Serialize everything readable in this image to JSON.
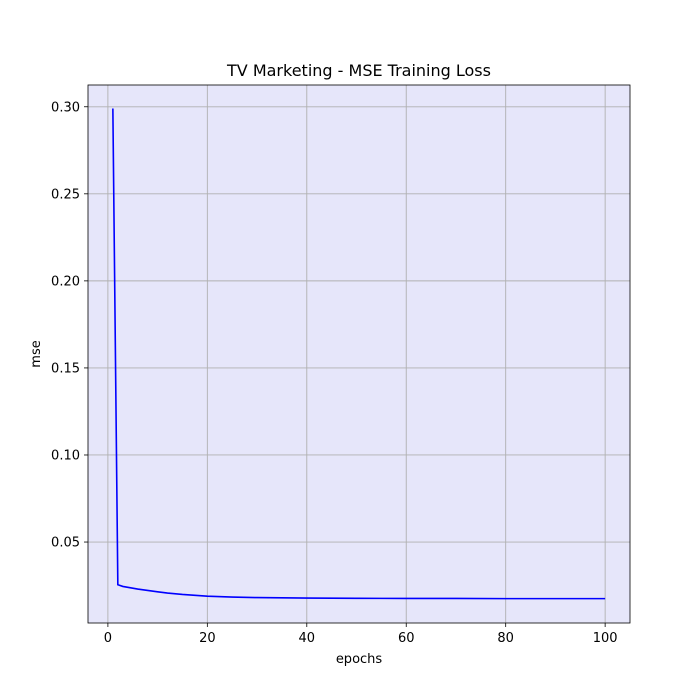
{
  "chart_data": {
    "type": "line",
    "title": "TV Marketing - MSE Training Loss",
    "xlabel": "epochs",
    "ylabel": "mse",
    "xlim": [
      -4,
      105
    ],
    "ylim": [
      0.0035,
      0.3125
    ],
    "xticks": [
      0,
      20,
      40,
      60,
      80,
      100
    ],
    "yticks": [
      0.05,
      0.1,
      0.15,
      0.2,
      0.25,
      0.3
    ],
    "xtick_labels": [
      "0",
      "20",
      "40",
      "60",
      "80",
      "100"
    ],
    "ytick_labels": [
      "0.05",
      "0.10",
      "0.15",
      "0.20",
      "0.25",
      "0.30"
    ],
    "grid": true,
    "colors": {
      "plot_background": "#e6e6fa",
      "line": "#0000ff",
      "grid": "#b0b0b0"
    },
    "series": [
      {
        "x": [
          1,
          2,
          3,
          4,
          5,
          6,
          8,
          10,
          12,
          15,
          20,
          25,
          30,
          40,
          50,
          60,
          70,
          80,
          90,
          100
        ],
        "values": [
          0.299,
          0.0255,
          0.0245,
          0.024,
          0.0235,
          0.023,
          0.0222,
          0.0214,
          0.0207,
          0.0199,
          0.0189,
          0.0184,
          0.0181,
          0.0178,
          0.0177,
          0.0176,
          0.0176,
          0.0175,
          0.0175,
          0.0175
        ]
      }
    ]
  }
}
